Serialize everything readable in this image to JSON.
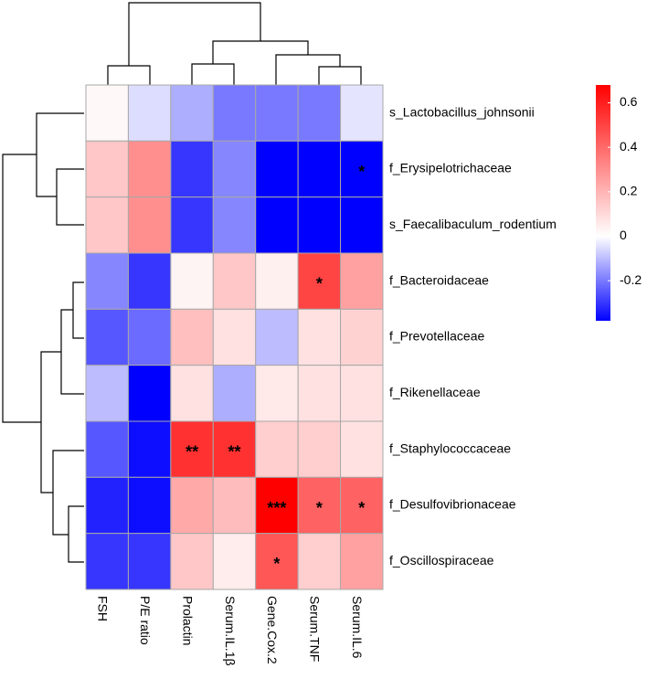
{
  "chart_data": {
    "type": "heatmap",
    "rows": [
      "s_Lactobacillus_johnsonii",
      "f_Erysipelotrichaceae",
      "s_Faecalibaculum_rodentium",
      "f_Bacteroidaceae",
      "f_Prevotellaceae",
      "f_Rikenellaceae",
      "f_Staphylococcaceae",
      "f_Desulfovibrionaceae",
      "f_Oscillospiraceae"
    ],
    "columns": [
      "FSH",
      "P/E ratio",
      "Prolactin",
      "Serum.IL.1β",
      "Gene.Cox.2",
      "Serum.TNF",
      "Serum.IL.6"
    ],
    "values": [
      [
        0.02,
        -0.05,
        -0.12,
        -0.2,
        -0.2,
        -0.2,
        -0.04
      ],
      [
        0.15,
        0.3,
        -0.3,
        -0.18,
        -0.38,
        -0.38,
        -0.38
      ],
      [
        0.15,
        0.3,
        -0.3,
        -0.18,
        -0.38,
        -0.38,
        -0.38
      ],
      [
        -0.18,
        -0.3,
        0.03,
        0.15,
        0.04,
        0.5,
        0.25
      ],
      [
        -0.25,
        -0.22,
        0.17,
        0.08,
        -0.1,
        0.08,
        0.12
      ],
      [
        -0.1,
        -0.38,
        0.08,
        -0.12,
        0.06,
        0.08,
        0.08
      ],
      [
        -0.25,
        -0.36,
        0.55,
        0.55,
        0.13,
        0.13,
        0.08
      ],
      [
        -0.33,
        -0.36,
        0.23,
        0.18,
        0.68,
        0.42,
        0.42
      ],
      [
        -0.3,
        -0.3,
        0.15,
        0.05,
        0.45,
        0.13,
        0.25
      ]
    ],
    "annotations": [
      [
        null,
        null,
        null,
        null,
        null,
        null,
        null
      ],
      [
        null,
        null,
        null,
        null,
        null,
        null,
        "*"
      ],
      [
        null,
        null,
        null,
        null,
        null,
        null,
        null
      ],
      [
        null,
        null,
        null,
        null,
        null,
        "*",
        null
      ],
      [
        null,
        null,
        null,
        null,
        null,
        null,
        null
      ],
      [
        null,
        null,
        null,
        null,
        null,
        null,
        null
      ],
      [
        null,
        null,
        "**",
        "**",
        null,
        null,
        null
      ],
      [
        null,
        null,
        null,
        null,
        "***",
        "*",
        "*"
      ],
      [
        null,
        null,
        null,
        null,
        "*",
        null,
        null
      ]
    ],
    "colors": {
      "low": "#0000ff",
      "mid": "#ffffff",
      "high": "#ff0000"
    },
    "colorbar_lim": [
      -0.38,
      0.68
    ],
    "colorbar_ticks": [
      0.6,
      0.4,
      0.2,
      0,
      -0.2
    ]
  }
}
